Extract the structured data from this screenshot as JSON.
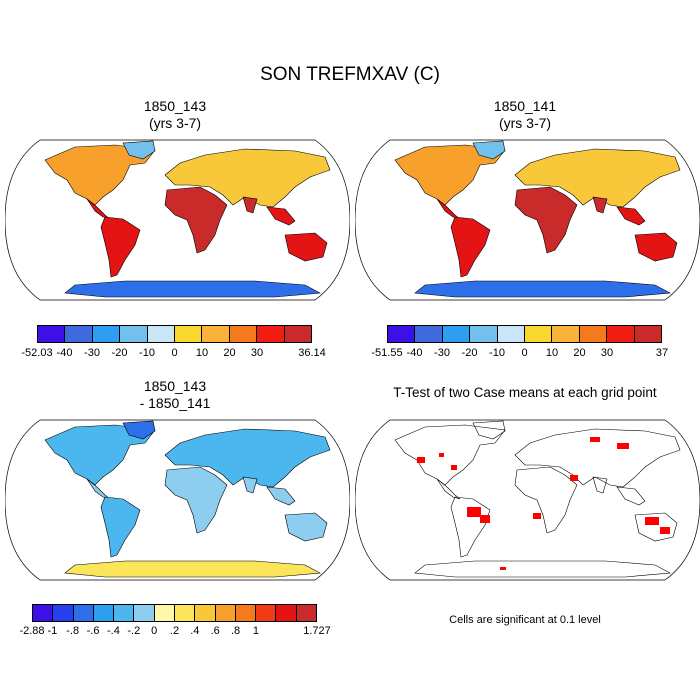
{
  "title": "SON TREFMXAV (C)",
  "panels": [
    {
      "id": "tl",
      "title_line1": "1850_143",
      "title_line2": "(yrs 3-7)"
    },
    {
      "id": "tr",
      "title_line1": "1850_141",
      "title_line2": "(yrs 3-7)"
    },
    {
      "id": "bl",
      "title_line1": "1850_143",
      "title_line2": "- 1850_141"
    },
    {
      "id": "br",
      "title_line1": "T-Test of two Case means at each grid point",
      "title_line2": ""
    }
  ],
  "colorbars": {
    "tl": {
      "colors": [
        "#3c10e6",
        "#3d6bdc",
        "#2d9ef0",
        "#72c0ec",
        "#c8e6f5",
        "#f8d72e",
        "#fbb23b",
        "#f47a1c",
        "#f01d12",
        "#c92a2a"
      ],
      "labels": [
        "-52.03",
        "-40",
        "-30",
        "-20",
        "-10",
        "0",
        "10",
        "20",
        "30",
        "36.14"
      ]
    },
    "tr": {
      "colors": [
        "#3c10e6",
        "#3d6bdc",
        "#2d9ef0",
        "#72c0ec",
        "#c8e6f5",
        "#f8d72e",
        "#fbb23b",
        "#f47a1c",
        "#f01d12",
        "#c92a2a"
      ],
      "labels": [
        "-51.55",
        "-40",
        "-30",
        "-20",
        "-10",
        "0",
        "10",
        "20",
        "30",
        "37"
      ]
    },
    "bl": {
      "colors": [
        "#3c10e6",
        "#2640f0",
        "#2d6fe8",
        "#2d9ef0",
        "#4bb7ee",
        "#8ccdf0",
        "#fff8a8",
        "#fbe55a",
        "#f8c83a",
        "#f7a02c",
        "#f47a1c",
        "#f03c16",
        "#e41414",
        "#c92a2a"
      ],
      "labels": [
        "-2.88",
        "-1",
        "-.8",
        "-.6",
        "-.4",
        "-.2",
        "0",
        ".2",
        ".4",
        ".6",
        ".8",
        "1",
        "1.727"
      ]
    }
  },
  "significance_note": "Cells are significant at 0.1 level"
}
